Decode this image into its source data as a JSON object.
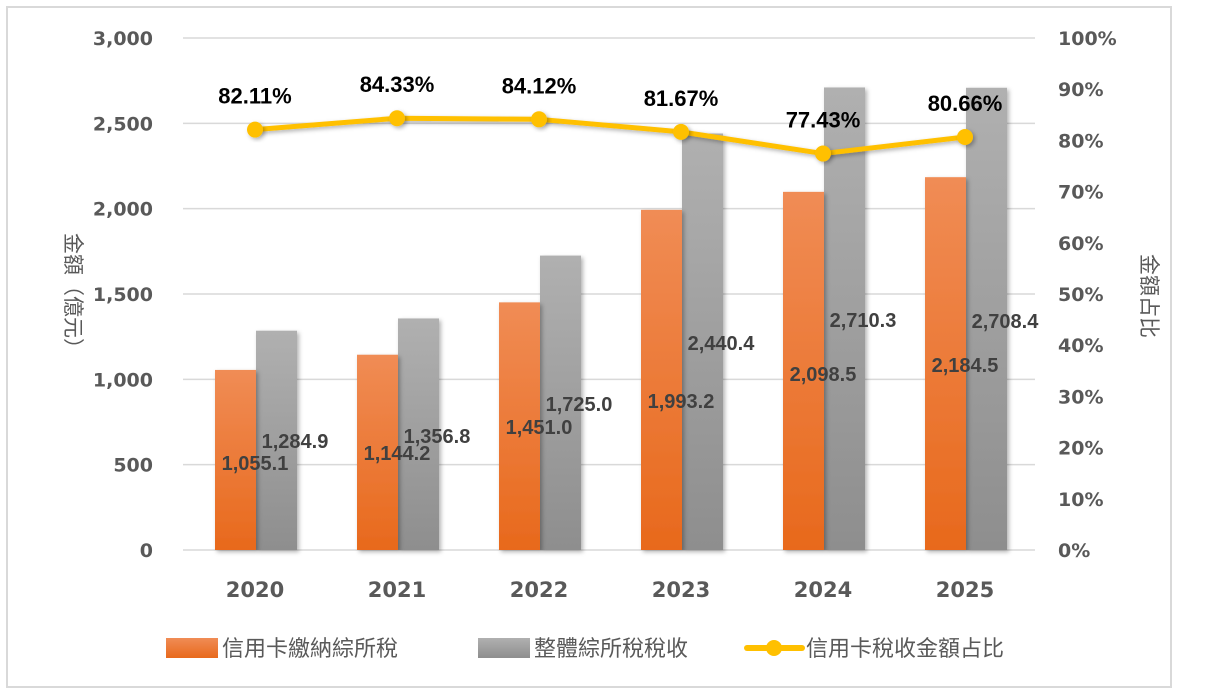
{
  "chart_data": {
    "type": "bar",
    "categories": [
      "2020",
      "2021",
      "2022",
      "2023",
      "2024",
      "2025"
    ],
    "series": [
      {
        "name": "信用卡繳納綜所稅",
        "kind": "bar",
        "axis": "left",
        "color": "#ED7D31",
        "values": [
          1055.1,
          1144.2,
          1451.0,
          1993.2,
          2098.5,
          2184.5
        ],
        "labels": [
          "1,055.1",
          "1,144.2",
          "1,451.0",
          "1,993.2",
          "2,098.5",
          "2,184.5"
        ]
      },
      {
        "name": "整體綜所稅稅收",
        "kind": "bar",
        "axis": "left",
        "color": "#A5A5A5",
        "values": [
          1284.9,
          1356.8,
          1725.0,
          2440.4,
          2710.3,
          2708.4
        ],
        "labels": [
          "1,284.9",
          "1,356.8",
          "1,725.0",
          "2,440.4",
          "2,710.3",
          "2,708.4"
        ]
      },
      {
        "name": "信用卡稅收金額占比",
        "kind": "line",
        "axis": "right",
        "color": "#FFC000",
        "values": [
          82.11,
          84.33,
          84.12,
          81.67,
          77.43,
          80.66
        ],
        "labels": [
          "82.11%",
          "84.33%",
          "84.12%",
          "81.67%",
          "77.43%",
          "80.66%"
        ]
      }
    ],
    "ylabel": "金額（億元）",
    "y2label": "金額占比",
    "ylim": [
      0,
      3000
    ],
    "y2lim": [
      0,
      100
    ],
    "yticks": [
      "0",
      "500",
      "1,000",
      "1,500",
      "2,000",
      "2,500",
      "3,000"
    ],
    "y2ticks": [
      "0%",
      "10%",
      "20%",
      "30%",
      "40%",
      "50%",
      "60%",
      "70%",
      "80%",
      "90%",
      "100%"
    ],
    "grid": true,
    "legend": "bottom"
  }
}
